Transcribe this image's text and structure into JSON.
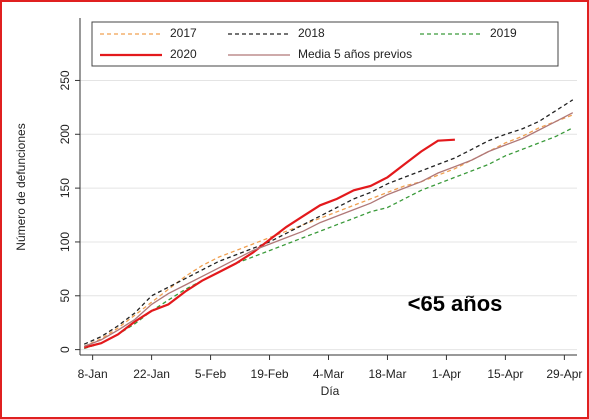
{
  "chart_data": {
    "type": "line",
    "y_label": "Número de defunciones",
    "x_label": "Día",
    "annotation": "<65 años",
    "x": [
      6,
      10,
      14,
      18,
      22,
      26,
      30,
      34,
      38,
      42,
      46,
      50,
      54,
      58,
      62,
      66,
      70,
      74,
      78,
      82,
      86,
      90,
      94,
      98,
      102,
      106,
      110,
      114,
      118,
      122
    ],
    "series": [
      {
        "name": "2017",
        "color": "#f0a050",
        "dashed": true,
        "values": [
          3,
          10,
          20,
          32,
          44,
          56,
          68,
          78,
          86,
          92,
          98,
          104,
          110,
          116,
          122,
          128,
          134,
          140,
          146,
          152,
          156,
          162,
          168,
          176,
          184,
          192,
          198,
          206,
          212,
          218
        ]
      },
      {
        "name": "2018",
        "color": "#222222",
        "dashed": true,
        "values": [
          5,
          12,
          22,
          34,
          50,
          58,
          66,
          74,
          82,
          88,
          94,
          100,
          108,
          116,
          124,
          132,
          140,
          146,
          154,
          160,
          166,
          172,
          178,
          186,
          194,
          200,
          205,
          212,
          222,
          232
        ]
      },
      {
        "name": "2019",
        "color": "#3a9a3a",
        "dashed": true,
        "values": [
          1,
          6,
          14,
          24,
          36,
          46,
          56,
          64,
          72,
          80,
          86,
          92,
          98,
          104,
          110,
          116,
          122,
          128,
          132,
          140,
          148,
          154,
          160,
          166,
          172,
          180,
          186,
          192,
          198,
          206
        ]
      },
      {
        "name": "2020",
        "color": "#e3191c",
        "dashed": false,
        "values": [
          2,
          6,
          14,
          26,
          36,
          42,
          54,
          64,
          72,
          80,
          90,
          102,
          114,
          124,
          134,
          140,
          148,
          152,
          160,
          172,
          184,
          194,
          195,
          null,
          null,
          null,
          null,
          null,
          null,
          null
        ]
      },
      {
        "name": "Media 5 años previos",
        "color": "#b07878",
        "dashed": false,
        "values": [
          3,
          9,
          18,
          28,
          42,
          52,
          60,
          68,
          76,
          84,
          92,
          98,
          104,
          110,
          118,
          124,
          130,
          136,
          144,
          150,
          156,
          164,
          170,
          176,
          184,
          190,
          196,
          204,
          212,
          220
        ]
      }
    ],
    "xlim": [
      5,
      123
    ],
    "ylim": [
      -5,
      308
    ],
    "xticks": [
      {
        "value": 8,
        "label": "8-Jan"
      },
      {
        "value": 22,
        "label": "22-Jan"
      },
      {
        "value": 36,
        "label": "5-Feb"
      },
      {
        "value": 50,
        "label": "19-Feb"
      },
      {
        "value": 64,
        "label": "4-Mar"
      },
      {
        "value": 78,
        "label": "18-Mar"
      },
      {
        "value": 92,
        "label": "1-Apr"
      },
      {
        "value": 106,
        "label": "15-Apr"
      },
      {
        "value": 120,
        "label": "29-Apr"
      }
    ],
    "yticks": [
      0,
      50,
      100,
      150,
      200,
      250
    ],
    "grid": true
  }
}
